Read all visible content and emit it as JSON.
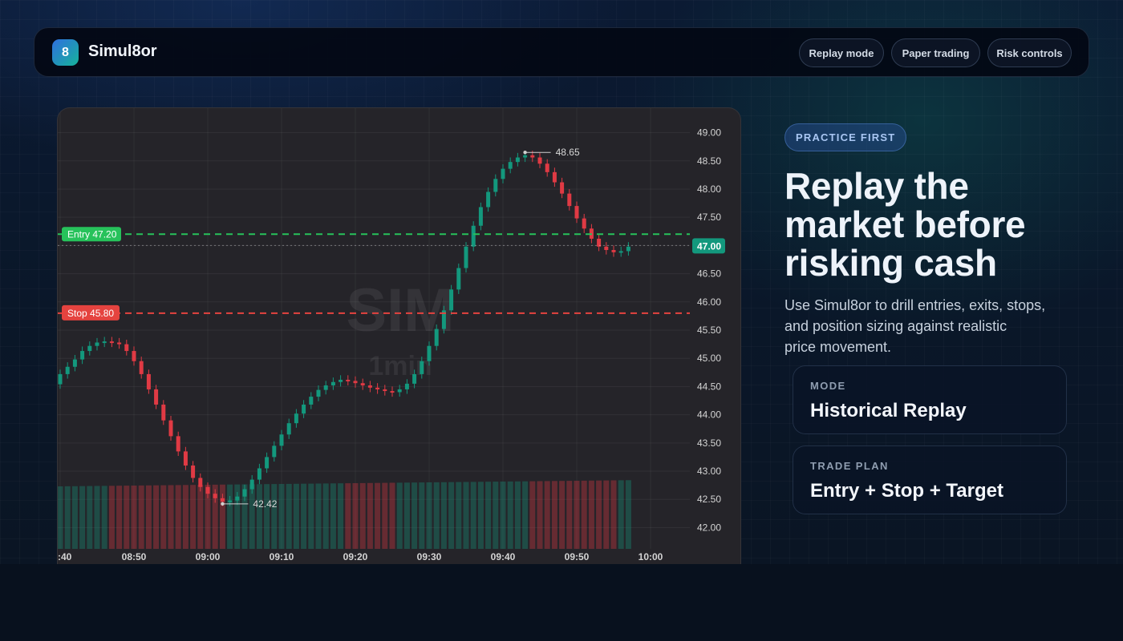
{
  "app": {
    "logo_badge": "8",
    "name": "Simul8or"
  },
  "nav": {
    "items": [
      "Replay mode",
      "Paper trading",
      "Risk controls"
    ]
  },
  "hero": {
    "badge": "PRACTICE FIRST",
    "headline_lines": [
      "Replay the",
      "market before",
      "risking cash"
    ],
    "subtitle_lines": [
      "Use Simul8or to drill entries, exits, stops,",
      "and position sizing against realistic",
      "price movement."
    ]
  },
  "cards": [
    {
      "label": "MODE",
      "value": "Historical Replay"
    },
    {
      "label": "TRADE PLAN",
      "value": "Entry + Stop + Target"
    }
  ],
  "colors": {
    "up": "#13987d",
    "down": "#e03a44",
    "entry": "#27c25b",
    "stop": "#e5433f",
    "chart_bg": "#252429",
    "price_tag": "#13987d"
  },
  "chart_data": {
    "type": "candlestick",
    "watermark": {
      "symbol": "SIM",
      "interval": "1min"
    },
    "ylim": [
      41.85,
      49.15
    ],
    "y_ticks": [
      "49.00",
      "48.50",
      "48.00",
      "47.50",
      "47.00",
      "46.50",
      "46.00",
      "45.50",
      "45.00",
      "44.50",
      "44.00",
      "43.50",
      "43.00",
      "42.50",
      "42.00"
    ],
    "x_ticks": [
      ":40",
      "08:50",
      "09:00",
      "09:10",
      "09:20",
      "09:30",
      "09:40",
      "09:50",
      "10:00"
    ],
    "entry": {
      "label": "Entry 47.20",
      "price": 47.2
    },
    "stop": {
      "label": "Stop 45.80",
      "price": 45.8
    },
    "last_price": {
      "label": "47.00",
      "price": 47.0
    },
    "high_marker": {
      "label": "48.65",
      "price": 48.65
    },
    "low_marker": {
      "label": "42.42",
      "price": 42.42
    },
    "closes": [
      44.72,
      44.85,
      44.98,
      45.13,
      45.22,
      45.28,
      45.3,
      45.28,
      45.25,
      45.13,
      44.95,
      44.72,
      44.45,
      44.18,
      43.9,
      43.62,
      43.35,
      43.1,
      42.88,
      42.72,
      42.6,
      42.52,
      42.46,
      42.48,
      42.55,
      42.68,
      42.85,
      43.05,
      43.25,
      43.45,
      43.65,
      43.85,
      44.02,
      44.18,
      44.32,
      44.44,
      44.52,
      44.58,
      44.62,
      44.6,
      44.56,
      44.52,
      44.48,
      44.45,
      44.42,
      44.4,
      44.45,
      44.55,
      44.72,
      44.95,
      45.22,
      45.52,
      45.85,
      46.22,
      46.6,
      46.98,
      47.35,
      47.68,
      47.95,
      48.18,
      48.36,
      48.48,
      48.56,
      48.6,
      48.56,
      48.45,
      48.3,
      48.12,
      47.92,
      47.7,
      47.48,
      47.3,
      47.12,
      46.98,
      46.92,
      46.88,
      46.9,
      46.98
    ],
    "volume": {
      "ylim": [
        0,
        1
      ]
    }
  }
}
